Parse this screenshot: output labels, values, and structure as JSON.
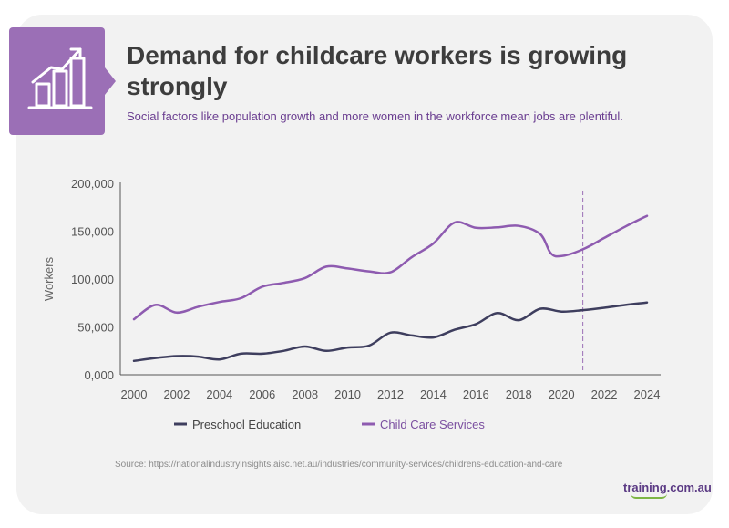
{
  "title": "Demand for childcare workers is growing strongly",
  "subtitle": "Social factors like population growth and more women in the workforce mean jobs are plentiful.",
  "source": "Source: https://nationalindustryinsights.aisc.net.au/industries/community-services/childrens-education-and-care",
  "brand": "training.com.au",
  "icon": "bar-chart-growth-icon",
  "colors": {
    "accent": "#9b6fb6",
    "preschool": "#3e3e5e",
    "childcare": "#8e5bb0",
    "title": "#3d3d3d",
    "subtitle": "#6a3d90"
  },
  "chart_data": {
    "type": "line",
    "ylabel": "Workers",
    "xlim": [
      2000,
      2024
    ],
    "ylim": [
      0,
      200000
    ],
    "x_ticks": [
      "2000",
      "2002",
      "2004",
      "2006",
      "2008",
      "2010",
      "2012",
      "2014",
      "2016",
      "2018",
      "2020",
      "2022",
      "2024"
    ],
    "y_ticks": [
      "0,000",
      "50,000",
      "100,000",
      "150,000",
      "200,000"
    ],
    "y_tick_values": [
      0,
      50000,
      100000,
      150000,
      200000
    ],
    "forecast_from": 2021,
    "legend": "bottom",
    "series": [
      {
        "name": "Preschool Education",
        "color": "#3e3e5e",
        "x": [
          2000,
          2001,
          2002,
          2003,
          2004,
          2005,
          2006,
          2007,
          2008,
          2009,
          2010,
          2011,
          2012,
          2013,
          2014,
          2015,
          2016,
          2017,
          2018,
          2019,
          2020,
          2021,
          2022,
          2023,
          2024
        ],
        "values": [
          14500,
          17500,
          19500,
          19000,
          16000,
          22000,
          22000,
          25000,
          29500,
          25000,
          28500,
          30500,
          44000,
          41000,
          39000,
          47000,
          53000,
          64500,
          57000,
          69000,
          66000,
          67500,
          70000,
          73000,
          75500
        ]
      },
      {
        "name": "Child Care Services",
        "color": "#8e5bb0",
        "x": [
          2000,
          2001,
          2002,
          2003,
          2004,
          2005,
          2006,
          2007,
          2008,
          2009,
          2010,
          2011,
          2012,
          2013,
          2014,
          2015,
          2016,
          2017,
          2018,
          2019,
          2019.5,
          2020,
          2021,
          2022,
          2023,
          2024
        ],
        "values": [
          58000,
          73000,
          65000,
          71000,
          76000,
          80000,
          92000,
          96000,
          101000,
          113000,
          111000,
          108000,
          107000,
          123000,
          137000,
          159000,
          153500,
          154000,
          155500,
          147000,
          127000,
          124000,
          131000,
          143000,
          155000,
          166000
        ]
      }
    ]
  }
}
